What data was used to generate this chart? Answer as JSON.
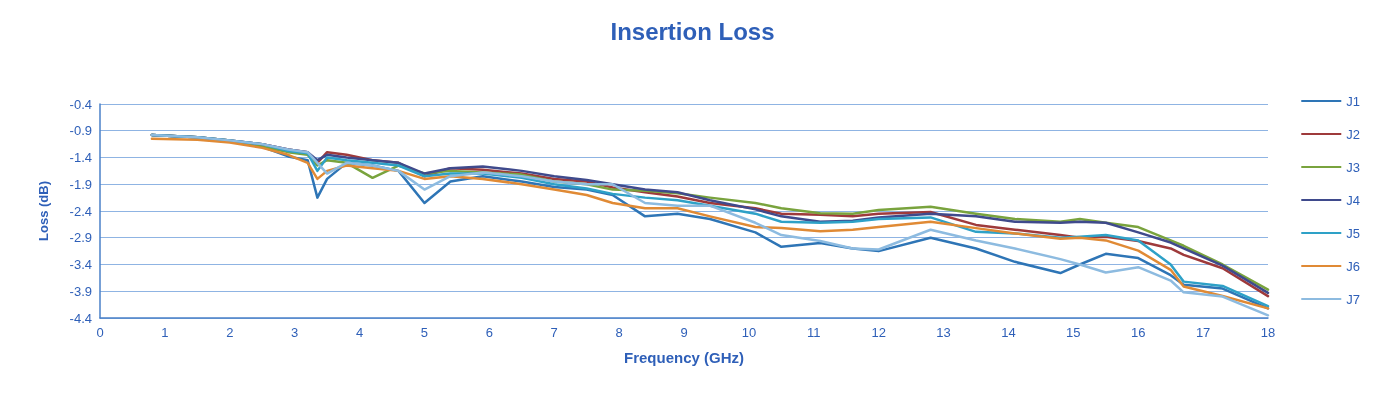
{
  "chart_data": {
    "type": "line",
    "title": "Insertion Loss",
    "xlabel": "Frequency (GHz)",
    "ylabel": "Loss (dB)",
    "x": [
      0.8,
      1.5,
      2,
      2.5,
      2.9,
      3.2,
      3.35,
      3.5,
      3.8,
      4.2,
      4.6,
      5,
      5.4,
      5.9,
      6.5,
      7,
      7.5,
      7.9,
      8.4,
      8.9,
      9.4,
      10.1,
      10.5,
      11.1,
      11.6,
      12,
      12.8,
      13.5,
      14.1,
      14.8,
      15.1,
      15.5,
      16,
      16.5,
      16.7,
      17.3,
      18
    ],
    "xlim": [
      0,
      18
    ],
    "xticks": [
      0,
      1,
      2,
      3,
      4,
      5,
      6,
      7,
      8,
      9,
      10,
      11,
      12,
      13,
      14,
      15,
      16,
      17,
      18
    ],
    "ylim": [
      -4.4,
      -0.4
    ],
    "yticks": [
      -4.4,
      -3.9,
      -3.4,
      -2.9,
      -2.4,
      -1.9,
      -1.4,
      -0.9,
      -0.4
    ],
    "grid": "y",
    "legend": "right",
    "marker": "none",
    "line_style": "solid",
    "series": [
      {
        "name": "J1",
        "color": "#2e75b6",
        "values": [
          -0.98,
          -1.02,
          -1.1,
          -1.2,
          -1.38,
          -1.45,
          -2.15,
          -1.8,
          -1.5,
          -1.55,
          -1.65,
          -2.25,
          -1.85,
          -1.75,
          -1.85,
          -1.95,
          -2.0,
          -2.1,
          -2.5,
          -2.45,
          -2.55,
          -2.8,
          -3.07,
          -3.0,
          -3.1,
          -3.15,
          -2.9,
          -3.1,
          -3.35,
          -3.56,
          -3.4,
          -3.2,
          -3.28,
          -3.6,
          -3.78,
          -3.85,
          -4.22
        ]
      },
      {
        "name": "J2",
        "color": "#9e3a3b",
        "values": [
          -0.98,
          -1.02,
          -1.08,
          -1.15,
          -1.25,
          -1.3,
          -1.5,
          -1.3,
          -1.35,
          -1.45,
          -1.5,
          -1.75,
          -1.6,
          -1.63,
          -1.7,
          -1.8,
          -1.85,
          -1.96,
          -2.05,
          -2.13,
          -2.25,
          -2.35,
          -2.45,
          -2.47,
          -2.5,
          -2.45,
          -2.42,
          -2.66,
          -2.75,
          -2.85,
          -2.9,
          -2.88,
          -2.96,
          -3.1,
          -3.22,
          -3.47,
          -3.99
        ]
      },
      {
        "name": "J3",
        "color": "#79a33d",
        "values": [
          -0.98,
          -1.02,
          -1.08,
          -1.2,
          -1.3,
          -1.35,
          -1.55,
          -1.45,
          -1.5,
          -1.78,
          -1.55,
          -1.7,
          -1.65,
          -1.68,
          -1.72,
          -1.85,
          -1.9,
          -2.0,
          -2.02,
          -2.07,
          -2.15,
          -2.25,
          -2.35,
          -2.44,
          -2.45,
          -2.38,
          -2.32,
          -2.45,
          -2.55,
          -2.6,
          -2.55,
          -2.62,
          -2.7,
          -2.95,
          -3.05,
          -3.4,
          -3.87
        ]
      },
      {
        "name": "J4",
        "color": "#3f4a8c",
        "values": [
          -0.98,
          -1.02,
          -1.08,
          -1.15,
          -1.25,
          -1.3,
          -1.45,
          -1.35,
          -1.4,
          -1.45,
          -1.5,
          -1.7,
          -1.6,
          -1.57,
          -1.65,
          -1.75,
          -1.82,
          -1.9,
          -2.0,
          -2.05,
          -2.2,
          -2.37,
          -2.5,
          -2.6,
          -2.58,
          -2.52,
          -2.45,
          -2.5,
          -2.6,
          -2.62,
          -2.6,
          -2.62,
          -2.8,
          -2.99,
          -3.1,
          -3.42,
          -3.93
        ]
      },
      {
        "name": "J5",
        "color": "#2ea1c7",
        "values": [
          -0.98,
          -1.02,
          -1.08,
          -1.15,
          -1.28,
          -1.32,
          -1.65,
          -1.4,
          -1.45,
          -1.5,
          -1.55,
          -1.75,
          -1.7,
          -1.7,
          -1.78,
          -1.9,
          -1.98,
          -2.08,
          -2.15,
          -2.2,
          -2.3,
          -2.45,
          -2.6,
          -2.62,
          -2.6,
          -2.55,
          -2.52,
          -2.79,
          -2.82,
          -2.9,
          -2.88,
          -2.85,
          -2.95,
          -3.4,
          -3.72,
          -3.8,
          -4.18
        ]
      },
      {
        "name": "J6",
        "color": "#e08a35",
        "values": [
          -1.05,
          -1.07,
          -1.12,
          -1.22,
          -1.35,
          -1.5,
          -1.8,
          -1.65,
          -1.55,
          -1.6,
          -1.65,
          -1.8,
          -1.75,
          -1.8,
          -1.9,
          -2.0,
          -2.1,
          -2.25,
          -2.35,
          -2.35,
          -2.5,
          -2.7,
          -2.72,
          -2.78,
          -2.75,
          -2.7,
          -2.6,
          -2.72,
          -2.82,
          -2.92,
          -2.9,
          -2.95,
          -3.14,
          -3.5,
          -3.81,
          -3.99,
          -4.22
        ]
      },
      {
        "name": "J7",
        "color": "#8dbbe0",
        "values": [
          -0.98,
          -1.02,
          -1.08,
          -1.15,
          -1.25,
          -1.3,
          -1.5,
          -1.7,
          -1.5,
          -1.55,
          -1.65,
          -2.0,
          -1.75,
          -1.68,
          -1.75,
          -1.85,
          -1.9,
          -1.9,
          -2.25,
          -2.3,
          -2.3,
          -2.62,
          -2.85,
          -2.96,
          -3.1,
          -3.12,
          -2.75,
          -2.95,
          -3.1,
          -3.3,
          -3.4,
          -3.55,
          -3.45,
          -3.7,
          -3.92,
          -4.0,
          -4.35
        ]
      }
    ]
  }
}
